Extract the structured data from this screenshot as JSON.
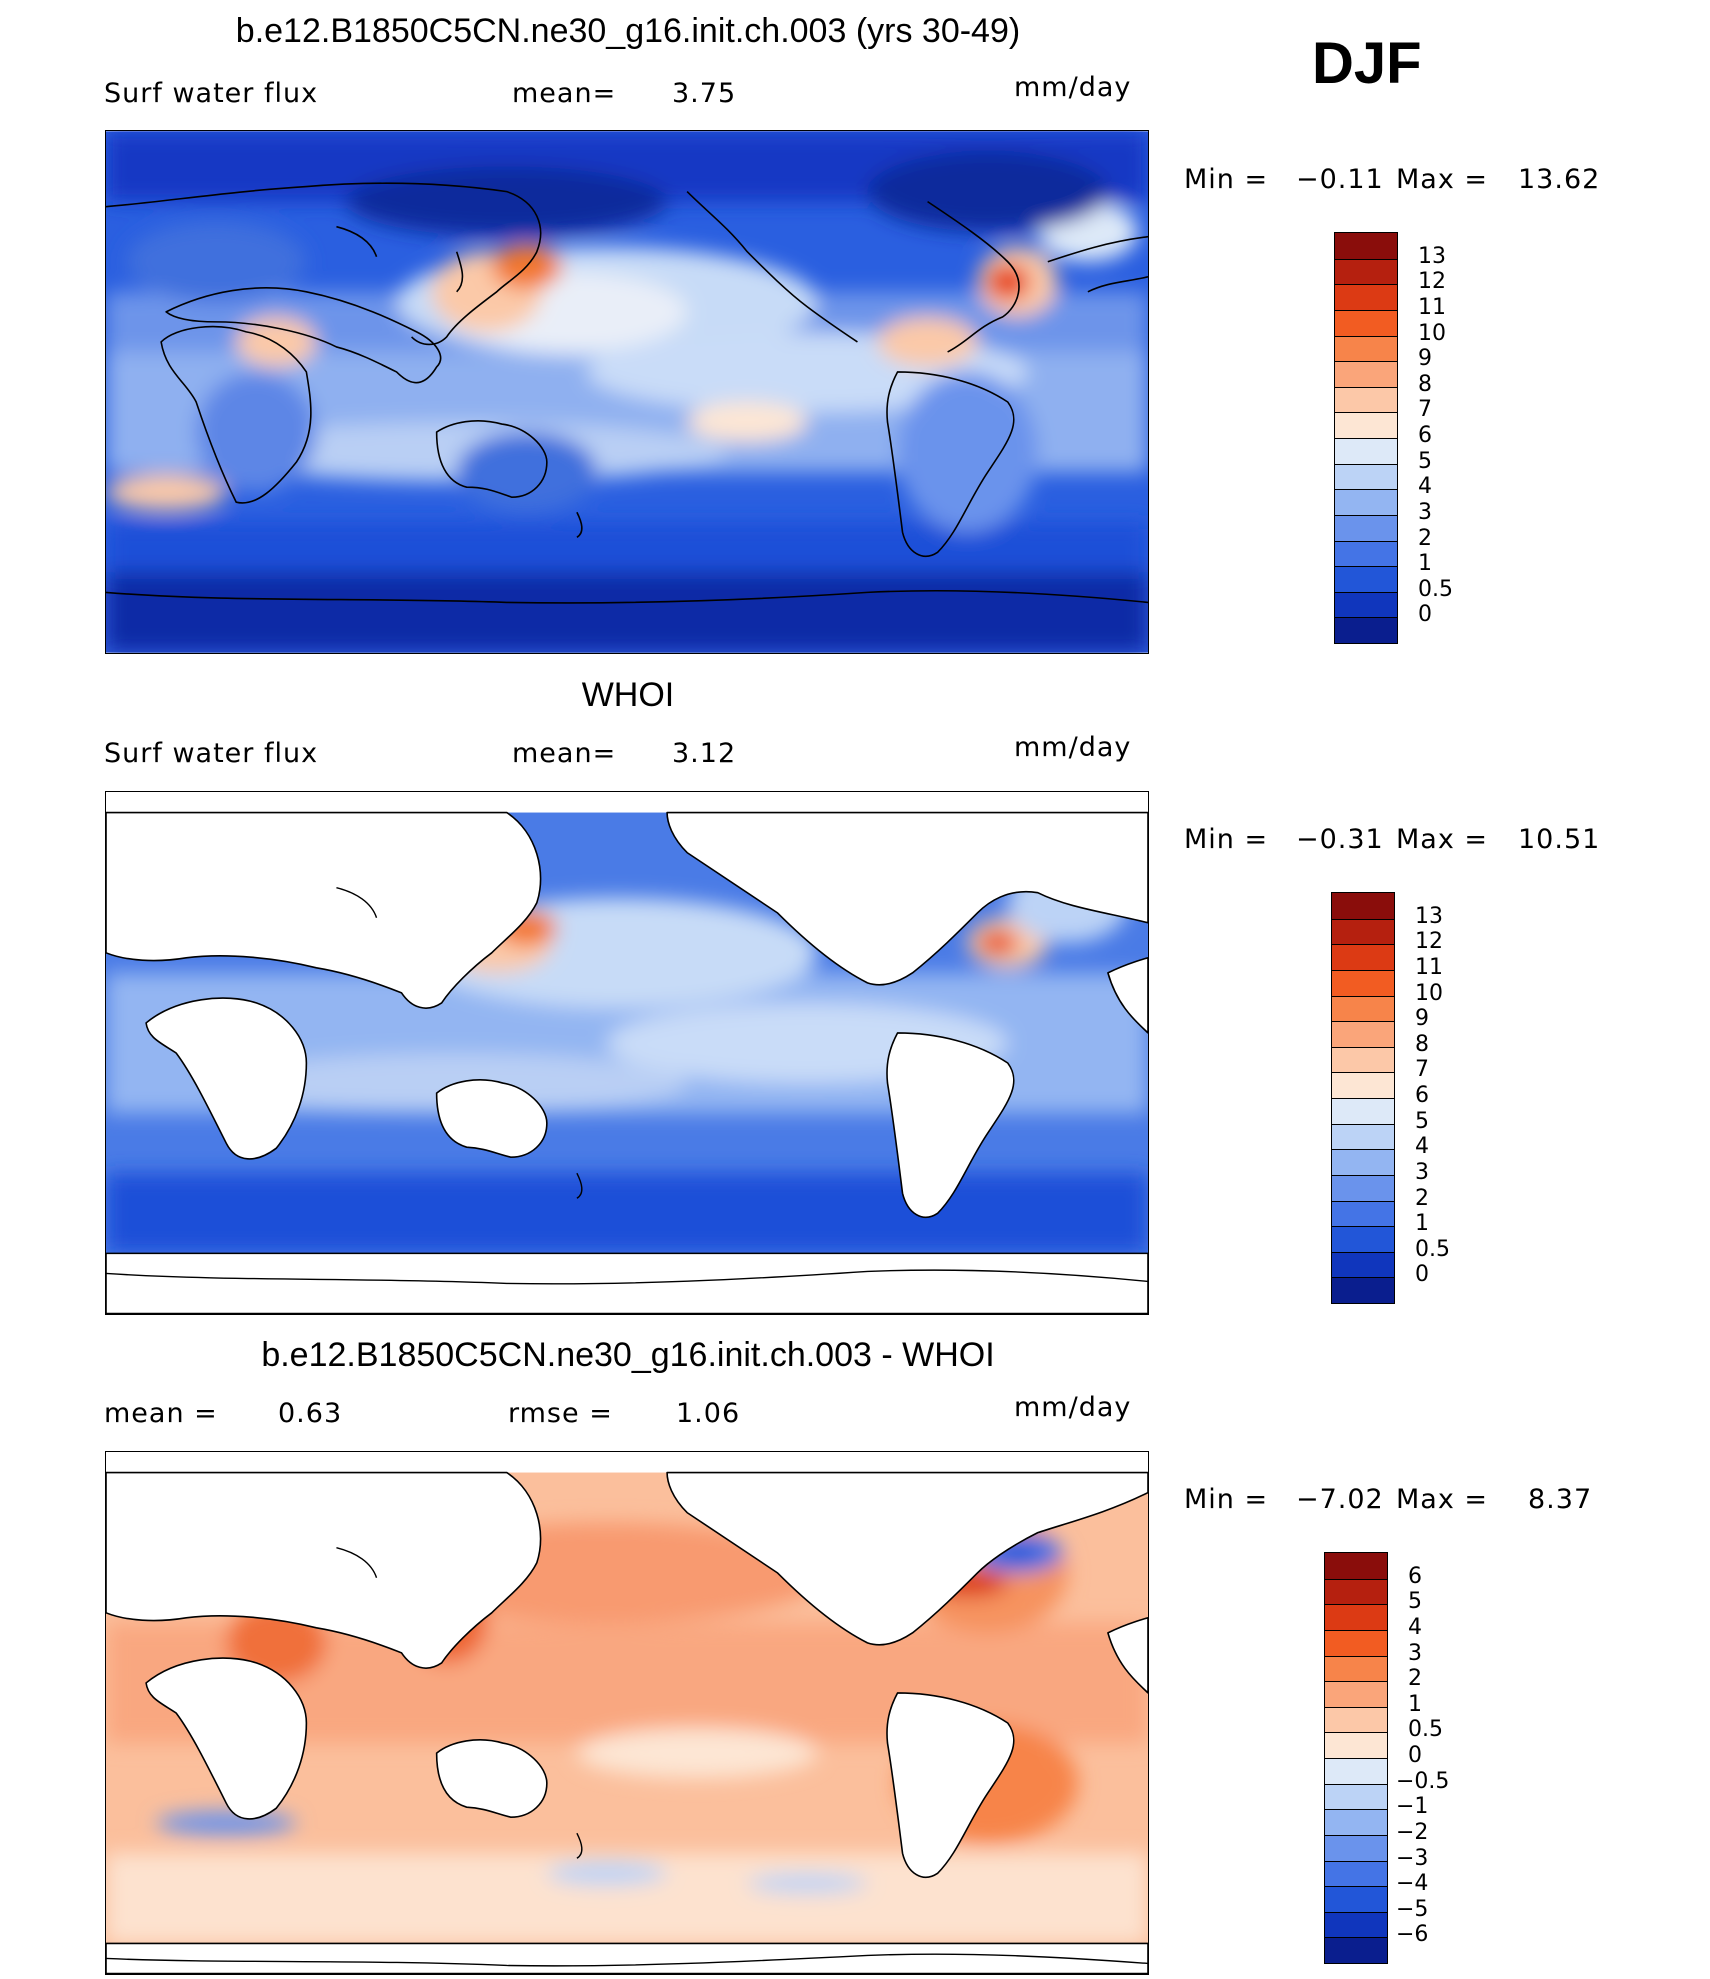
{
  "season": "DJF",
  "panels": [
    {
      "title": "b.e12.B1850C5CN.ne30_g16.init.ch.003 (yrs 30-49)",
      "left_label": "Surf  water  flux",
      "mid_label": "mean=",
      "mid_value": "3.75",
      "units": "mm/day",
      "min_label": "Min  =",
      "min_value": "−0.11",
      "max_label": "Max  =",
      "max_value": "13.62",
      "colorbar": {
        "labels": [
          "13",
          "12",
          "11",
          "10",
          "9",
          "8",
          "7",
          "6",
          "5",
          "4",
          "3",
          "2",
          "1",
          "0.5",
          "0"
        ],
        "colors": [
          "#8a0d0b",
          "#b5200f",
          "#dc3a14",
          "#f25c22",
          "#f7844a",
          "#faa57a",
          "#fcc8a8",
          "#fde6d4",
          "#dde9f8",
          "#bcd3f6",
          "#93b5f2",
          "#6a93ec",
          "#4474e6",
          "#2256d8",
          "#1036bd",
          "#0a1e8e"
        ]
      }
    },
    {
      "title": "WHOI",
      "left_label": "Surf  water  flux",
      "mid_label": "mean=",
      "mid_value": "3.12",
      "units": "mm/day",
      "min_label": "Min  =",
      "min_value": "−0.31",
      "max_label": "Max  =",
      "max_value": "10.51",
      "colorbar": {
        "labels": [
          "13",
          "12",
          "11",
          "10",
          "9",
          "8",
          "7",
          "6",
          "5",
          "4",
          "3",
          "2",
          "1",
          "0.5",
          "0"
        ],
        "colors": [
          "#8a0d0b",
          "#b5200f",
          "#dc3a14",
          "#f25c22",
          "#f7844a",
          "#faa57a",
          "#fcc8a8",
          "#fde6d4",
          "#dde9f8",
          "#bcd3f6",
          "#93b5f2",
          "#6a93ec",
          "#4474e6",
          "#2256d8",
          "#1036bd",
          "#0a1e8e"
        ]
      }
    },
    {
      "title": "b.e12.B1850C5CN.ne30_g16.init.ch.003 - WHOI",
      "left_label": "mean  =",
      "left_value": "0.63",
      "mid_label": "rmse  =",
      "mid_value": "1.06",
      "units": "mm/day",
      "min_label": "Min  =",
      "min_value": "−7.02",
      "max_label": "Max  =",
      "max_value": "8.37",
      "colorbar": {
        "labels": [
          "6",
          "5",
          "4",
          "3",
          "2",
          "1",
          "0.5",
          "0",
          "−0.5",
          "−1",
          "−2",
          "−3",
          "−4",
          "−5",
          "−6"
        ],
        "colors": [
          "#8a0d0b",
          "#b5200f",
          "#dc3a14",
          "#f25c22",
          "#f7844a",
          "#faa57a",
          "#fcc8a8",
          "#fde6d4",
          "#dde9f8",
          "#bcd3f6",
          "#93b5f2",
          "#6a93ec",
          "#4474e6",
          "#2256d8",
          "#1036bd",
          "#0a1e8e"
        ]
      }
    }
  ]
}
